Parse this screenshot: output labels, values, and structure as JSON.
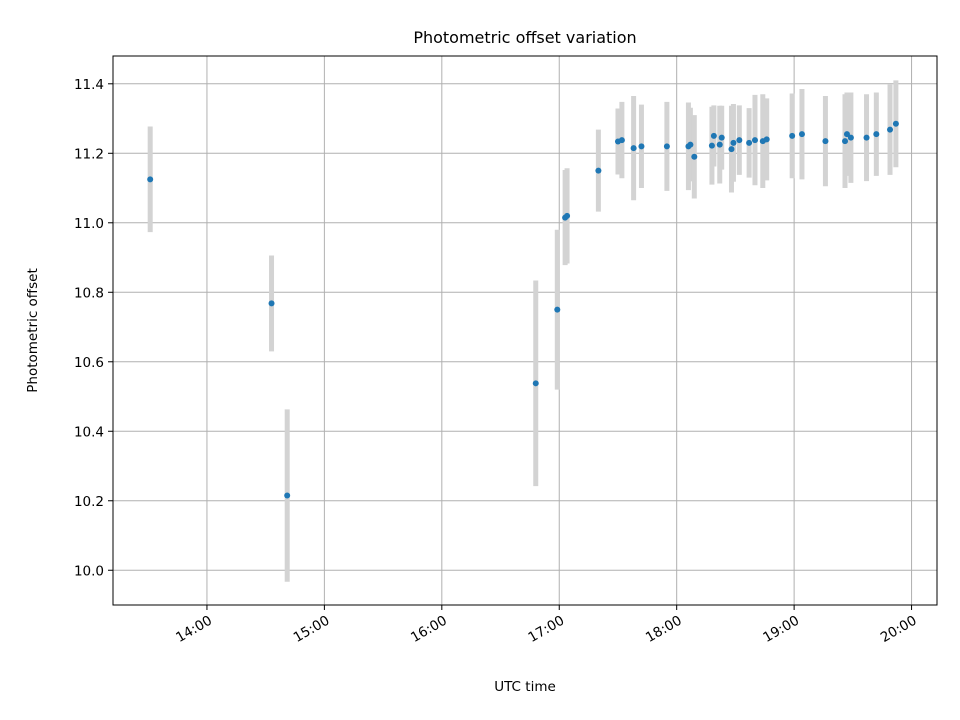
{
  "chart_data": {
    "type": "scatter",
    "title": "Photometric offset variation",
    "xlabel": "UTC time",
    "ylabel": "Photometric offset",
    "x_axis_type": "time",
    "xlim": [
      "13:12",
      "20:13"
    ],
    "ylim": [
      9.9,
      11.48
    ],
    "x_ticks": [
      "14:00",
      "15:00",
      "16:00",
      "17:00",
      "18:00",
      "19:00",
      "20:00"
    ],
    "y_ticks": [
      "10.0",
      "10.2",
      "10.4",
      "10.6",
      "10.8",
      "11.0",
      "11.2",
      "11.4"
    ],
    "grid": true,
    "legend": "none",
    "colors": {
      "point": "#1f77b4",
      "errorbar": "#d3d3d3",
      "grid": "#b0b0b0"
    },
    "points": [
      {
        "x": "13:31",
        "y": 11.125,
        "err": 0.152
      },
      {
        "x": "14:33",
        "y": 10.768,
        "err": 0.138
      },
      {
        "x": "14:41",
        "y": 10.215,
        "err": 0.248
      },
      {
        "x": "16:48",
        "y": 10.538,
        "err": 0.296
      },
      {
        "x": "16:59",
        "y": 10.75,
        "err": 0.23
      },
      {
        "x": "17:03",
        "y": 11.015,
        "err": 0.137
      },
      {
        "x": "17:04",
        "y": 11.02,
        "err": 0.137
      },
      {
        "x": "17:20",
        "y": 11.15,
        "err": 0.118
      },
      {
        "x": "17:30",
        "y": 11.234,
        "err": 0.095
      },
      {
        "x": "17:32",
        "y": 11.238,
        "err": 0.11
      },
      {
        "x": "17:38",
        "y": 11.215,
        "err": 0.15
      },
      {
        "x": "17:42",
        "y": 11.22,
        "err": 0.12
      },
      {
        "x": "17:55",
        "y": 11.22,
        "err": 0.128
      },
      {
        "x": "18:06",
        "y": 11.22,
        "err": 0.126
      },
      {
        "x": "18:07",
        "y": 11.225,
        "err": 0.106
      },
      {
        "x": "18:09",
        "y": 11.19,
        "err": 0.12
      },
      {
        "x": "18:18",
        "y": 11.222,
        "err": 0.112
      },
      {
        "x": "18:19",
        "y": 11.25,
        "err": 0.088
      },
      {
        "x": "18:22",
        "y": 11.225,
        "err": 0.112
      },
      {
        "x": "18:23",
        "y": 11.245,
        "err": 0.092
      },
      {
        "x": "18:28",
        "y": 11.212,
        "err": 0.125
      },
      {
        "x": "18:29",
        "y": 11.23,
        "err": 0.112
      },
      {
        "x": "18:32",
        "y": 11.238,
        "err": 0.1
      },
      {
        "x": "18:37",
        "y": 11.23,
        "err": 0.1
      },
      {
        "x": "18:40",
        "y": 11.238,
        "err": 0.13
      },
      {
        "x": "18:44",
        "y": 11.235,
        "err": 0.135
      },
      {
        "x": "18:46",
        "y": 11.24,
        "err": 0.118
      },
      {
        "x": "18:59",
        "y": 11.25,
        "err": 0.122
      },
      {
        "x": "19:04",
        "y": 11.255,
        "err": 0.13
      },
      {
        "x": "19:16",
        "y": 11.235,
        "err": 0.13
      },
      {
        "x": "19:26",
        "y": 11.235,
        "err": 0.135
      },
      {
        "x": "19:27",
        "y": 11.255,
        "err": 0.12
      },
      {
        "x": "19:29",
        "y": 11.245,
        "err": 0.13
      },
      {
        "x": "19:37",
        "y": 11.245,
        "err": 0.125
      },
      {
        "x": "19:42",
        "y": 11.255,
        "err": 0.12
      },
      {
        "x": "19:49",
        "y": 11.268,
        "err": 0.13
      },
      {
        "x": "19:52",
        "y": 11.285,
        "err": 0.125
      }
    ]
  }
}
